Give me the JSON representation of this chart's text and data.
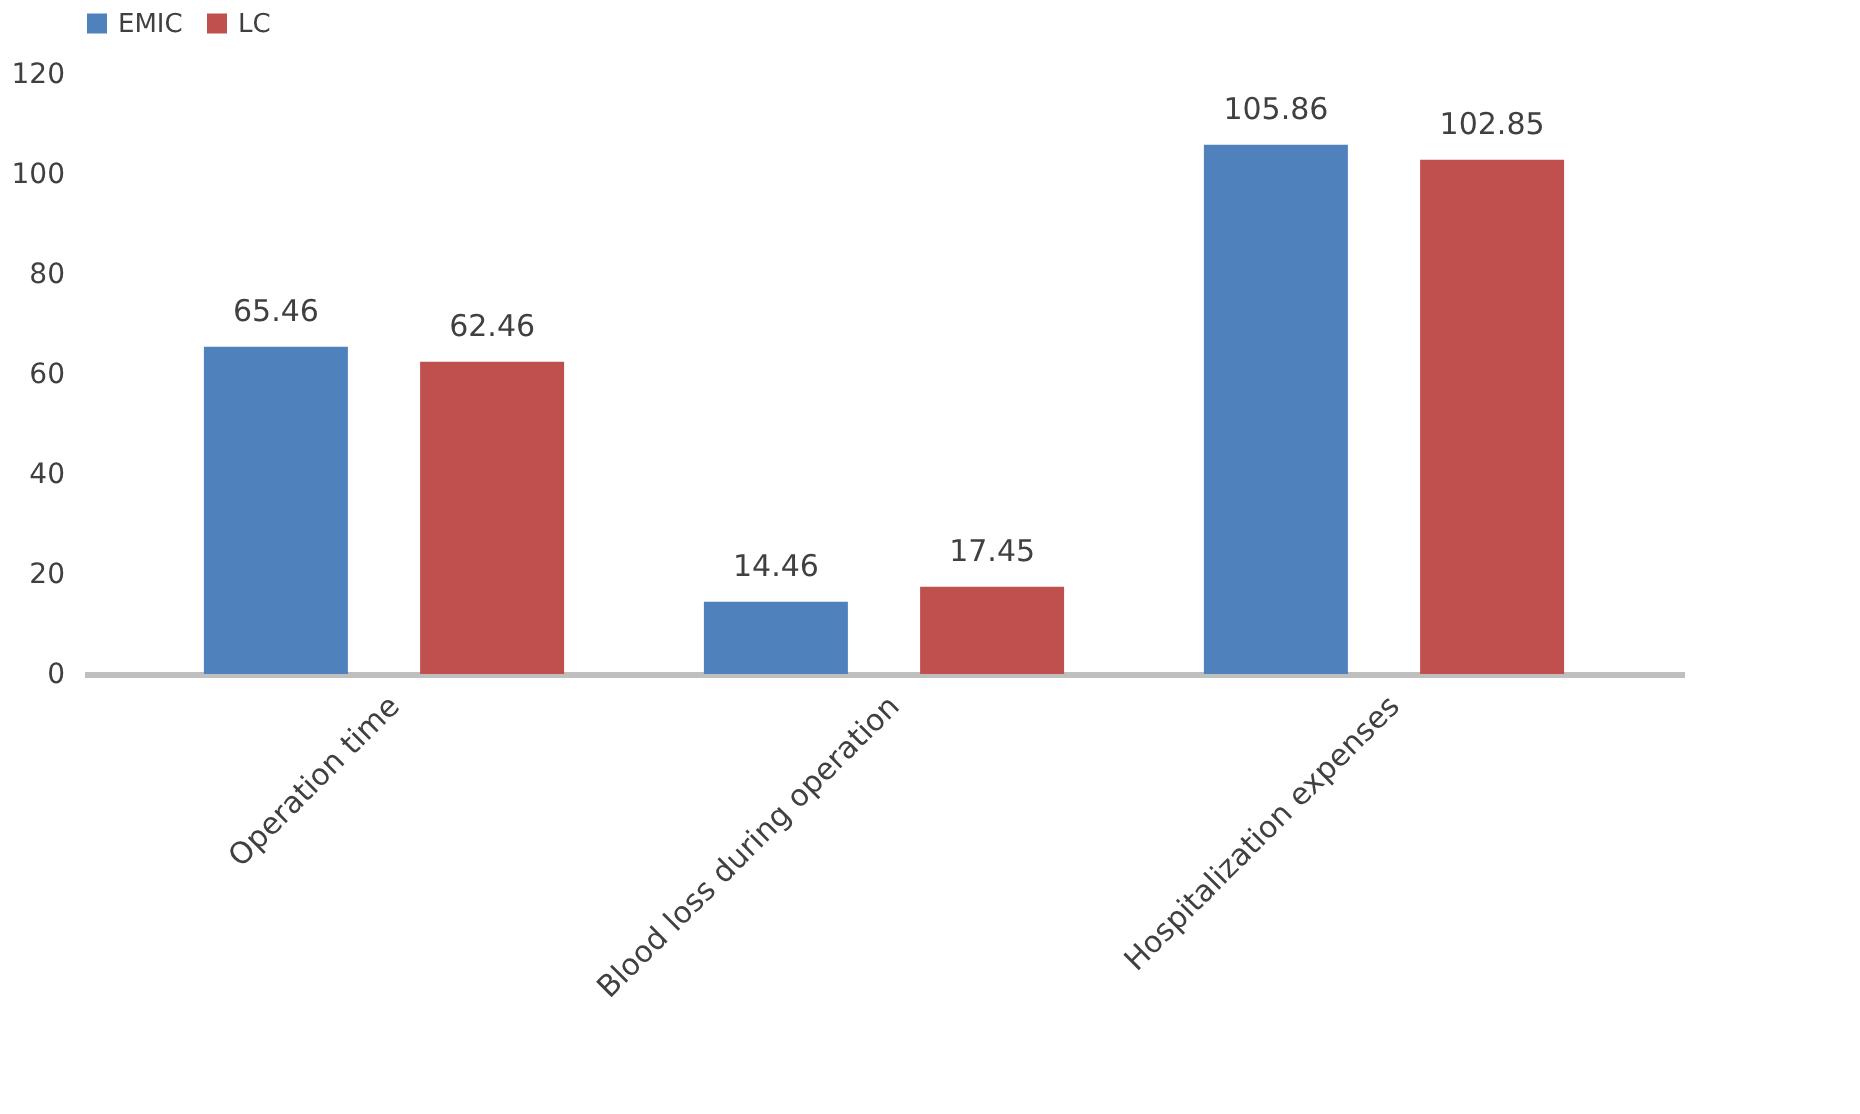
{
  "chart_data": {
    "type": "bar",
    "categories": [
      "Operation time",
      "Blood loss during operation",
      "Hospitalization expenses"
    ],
    "series": [
      {
        "name": "EMIC",
        "color": "#4f81bd",
        "values": [
          65.46,
          14.46,
          105.86
        ]
      },
      {
        "name": "LC",
        "color": "#c0504d",
        "values": [
          62.46,
          17.45,
          102.85
        ]
      }
    ],
    "ylim": [
      0,
      120
    ],
    "yticks": [
      0,
      20,
      40,
      60,
      80,
      100,
      120
    ],
    "grid": false,
    "legend": "top",
    "data_labels": true
  }
}
